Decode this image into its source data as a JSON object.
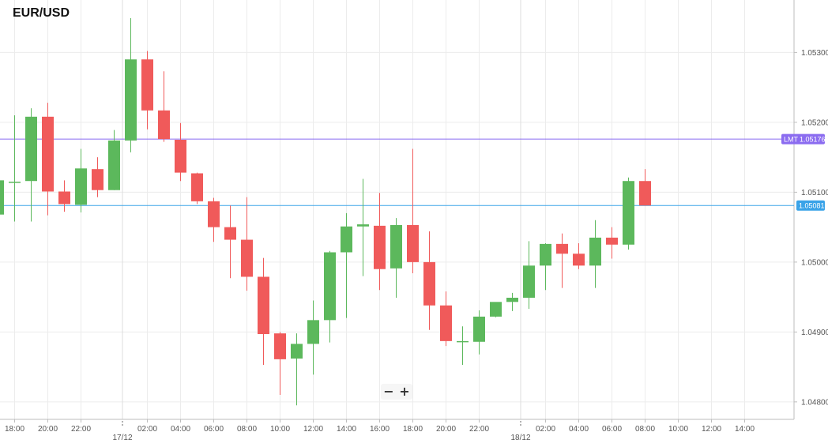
{
  "title": "EUR/USD",
  "zoom": {
    "minus_label": "−",
    "plus_label": "+"
  },
  "chart_data": {
    "type": "candlestick",
    "symbol": "EUR/USD",
    "ylim": [
      1.04775,
      1.05375
    ],
    "y_ticks": [
      "1.05300",
      "1.05200",
      "1.05100",
      "1.05000",
      "1.04900",
      "1.04800"
    ],
    "x_ticks": [
      {
        "label": "18:00",
        "i": 1
      },
      {
        "label": "20:00",
        "i": 3
      },
      {
        "label": "22:00",
        "i": 5
      },
      {
        "label": "02:00",
        "i": 9
      },
      {
        "label": "04:00",
        "i": 11
      },
      {
        "label": "06:00",
        "i": 13
      },
      {
        "label": "08:00",
        "i": 15
      },
      {
        "label": "10:00",
        "i": 17
      },
      {
        "label": "12:00",
        "i": 19
      },
      {
        "label": "14:00",
        "i": 21
      },
      {
        "label": "16:00",
        "i": 23
      },
      {
        "label": "18:00",
        "i": 25
      },
      {
        "label": "20:00",
        "i": 27
      },
      {
        "label": "22:00",
        "i": 29
      },
      {
        "label": "02:00",
        "i": 33
      },
      {
        "label": "04:00",
        "i": 35
      },
      {
        "label": "06:00",
        "i": 37
      },
      {
        "label": "08:00",
        "i": 39
      },
      {
        "label": "10:00",
        "i": 41
      },
      {
        "label": "12:00",
        "i": 43
      },
      {
        "label": "14:00",
        "i": 45
      }
    ],
    "day_labels": [
      {
        "label": "17/12",
        "i": 7
      },
      {
        "label": "18/12",
        "i": 31
      }
    ],
    "candles": [
      {
        "o": 1.05068,
        "h": 1.05117,
        "l": 1.05068,
        "c": 1.05117
      },
      {
        "o": 1.05115,
        "h": 1.0521,
        "l": 1.05058,
        "c": 1.05115
      },
      {
        "o": 1.05116,
        "h": 1.0522,
        "l": 1.05058,
        "c": 1.05208
      },
      {
        "o": 1.05208,
        "h": 1.05228,
        "l": 1.05067,
        "c": 1.05101
      },
      {
        "o": 1.05101,
        "h": 1.05117,
        "l": 1.05072,
        "c": 1.05083
      },
      {
        "o": 1.05082,
        "h": 1.05162,
        "l": 1.05071,
        "c": 1.05134
      },
      {
        "o": 1.05133,
        "h": 1.0515,
        "l": 1.05093,
        "c": 1.05103
      },
      {
        "o": 1.05103,
        "h": 1.05189,
        "l": 1.05103,
        "c": 1.05174
      },
      {
        "o": 1.05174,
        "h": 1.05349,
        "l": 1.05157,
        "c": 1.0529
      },
      {
        "o": 1.0529,
        "h": 1.05302,
        "l": 1.0519,
        "c": 1.05217
      },
      {
        "o": 1.05217,
        "h": 1.05273,
        "l": 1.05172,
        "c": 1.05176
      },
      {
        "o": 1.05175,
        "h": 1.05199,
        "l": 1.05116,
        "c": 1.05128
      },
      {
        "o": 1.05127,
        "h": 1.05128,
        "l": 1.05083,
        "c": 1.05087
      },
      {
        "o": 1.05087,
        "h": 1.05092,
        "l": 1.05029,
        "c": 1.0505
      },
      {
        "o": 1.0505,
        "h": 1.05081,
        "l": 1.04977,
        "c": 1.05032
      },
      {
        "o": 1.05032,
        "h": 1.05093,
        "l": 1.04959,
        "c": 1.04979
      },
      {
        "o": 1.04979,
        "h": 1.05006,
        "l": 1.04853,
        "c": 1.04897
      },
      {
        "o": 1.04898,
        "h": 1.049,
        "l": 1.0481,
        "c": 1.04861
      },
      {
        "o": 1.04862,
        "h": 1.04898,
        "l": 1.04795,
        "c": 1.04883
      },
      {
        "o": 1.04883,
        "h": 1.04945,
        "l": 1.04839,
        "c": 1.04917
      },
      {
        "o": 1.04917,
        "h": 1.05016,
        "l": 1.04885,
        "c": 1.05014
      },
      {
        "o": 1.05014,
        "h": 1.0507,
        "l": 1.0492,
        "c": 1.05051
      },
      {
        "o": 1.05051,
        "h": 1.05119,
        "l": 1.0498,
        "c": 1.05054
      },
      {
        "o": 1.05052,
        "h": 1.05099,
        "l": 1.0496,
        "c": 1.0499
      },
      {
        "o": 1.04991,
        "h": 1.05063,
        "l": 1.04949,
        "c": 1.05053
      },
      {
        "o": 1.05053,
        "h": 1.05162,
        "l": 1.04984,
        "c": 1.05
      },
      {
        "o": 1.05,
        "h": 1.05044,
        "l": 1.04903,
        "c": 1.04938
      },
      {
        "o": 1.04938,
        "h": 1.04958,
        "l": 1.0488,
        "c": 1.04887
      },
      {
        "o": 1.04887,
        "h": 1.04908,
        "l": 1.04853,
        "c": 1.04887
      },
      {
        "o": 1.04886,
        "h": 1.04931,
        "l": 1.04868,
        "c": 1.04922
      },
      {
        "o": 1.04922,
        "h": 1.04941,
        "l": 1.04921,
        "c": 1.04943
      },
      {
        "o": 1.04943,
        "h": 1.04956,
        "l": 1.0493,
        "c": 1.04949
      },
      {
        "o": 1.04949,
        "h": 1.0503,
        "l": 1.04933,
        "c": 1.04995
      },
      {
        "o": 1.04995,
        "h": 1.05027,
        "l": 1.0496,
        "c": 1.05026
      },
      {
        "o": 1.05026,
        "h": 1.05041,
        "l": 1.04963,
        "c": 1.05012
      },
      {
        "o": 1.05012,
        "h": 1.05027,
        "l": 1.0499,
        "c": 1.04995
      },
      {
        "o": 1.04995,
        "h": 1.0506,
        "l": 1.04963,
        "c": 1.05035
      },
      {
        "o": 1.05035,
        "h": 1.0505,
        "l": 1.05005,
        "c": 1.05025
      },
      {
        "o": 1.05025,
        "h": 1.05121,
        "l": 1.05018,
        "c": 1.05116
      },
      {
        "o": 1.05116,
        "h": 1.05133,
        "l": 1.05081,
        "c": 1.05081
      }
    ],
    "price_lines": [
      {
        "label": "LMT",
        "value": 1.05176,
        "value_text": "1.05176",
        "color": "#8b6cf0"
      },
      {
        "label": "",
        "value": 1.05081,
        "value_text": "1.05081",
        "color": "#3aa3e8"
      }
    ],
    "colors": {
      "up": "#5cb85c",
      "down": "#f05a5a",
      "grid": "#ececec",
      "axis": "#bdbdbd",
      "text": "#555555"
    },
    "grid": true
  }
}
